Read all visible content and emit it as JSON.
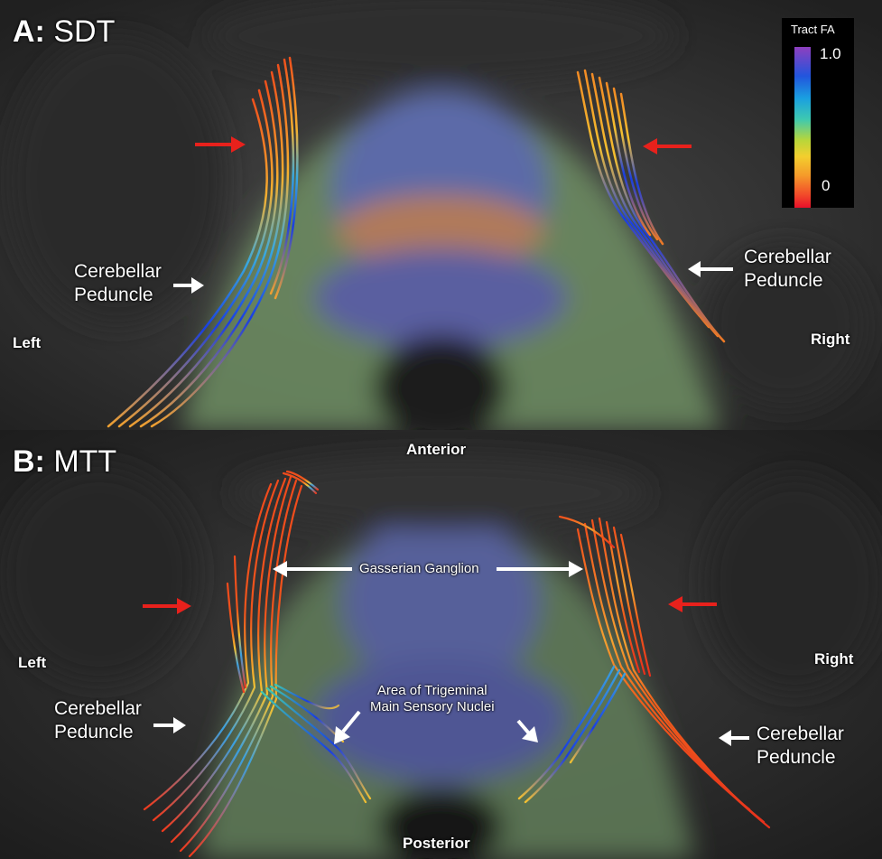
{
  "panel_a": {
    "title_bold": "A:",
    "title_rest": " SDT",
    "left_label": "Left",
    "right_label": "Right",
    "left_peduncle": [
      "Cerebellar",
      "Peduncle"
    ],
    "right_peduncle": [
      "Cerebellar",
      "Peduncle"
    ]
  },
  "panel_b": {
    "title_bold": "B:",
    "title_rest": " MTT",
    "left_label": "Left",
    "right_label": "Right",
    "anterior": "Anterior",
    "posterior": "Posterior",
    "ganglion": "Gasserian Ganglion",
    "nuclei": [
      "Area of Trigeminal",
      "Main Sensory Nuclei"
    ],
    "left_peduncle": [
      "Cerebellar",
      "Peduncle"
    ],
    "right_peduncle": [
      "Cerebellar",
      "Peduncle"
    ]
  },
  "colorbar": {
    "title": "Tract FA",
    "max": "1.0",
    "min": "0"
  },
  "colors": {
    "arrow_red": "#e8211c",
    "arrow_white": "#ffffff",
    "tract_high": "#1a3fe0",
    "tract_low": "#f0301c"
  }
}
